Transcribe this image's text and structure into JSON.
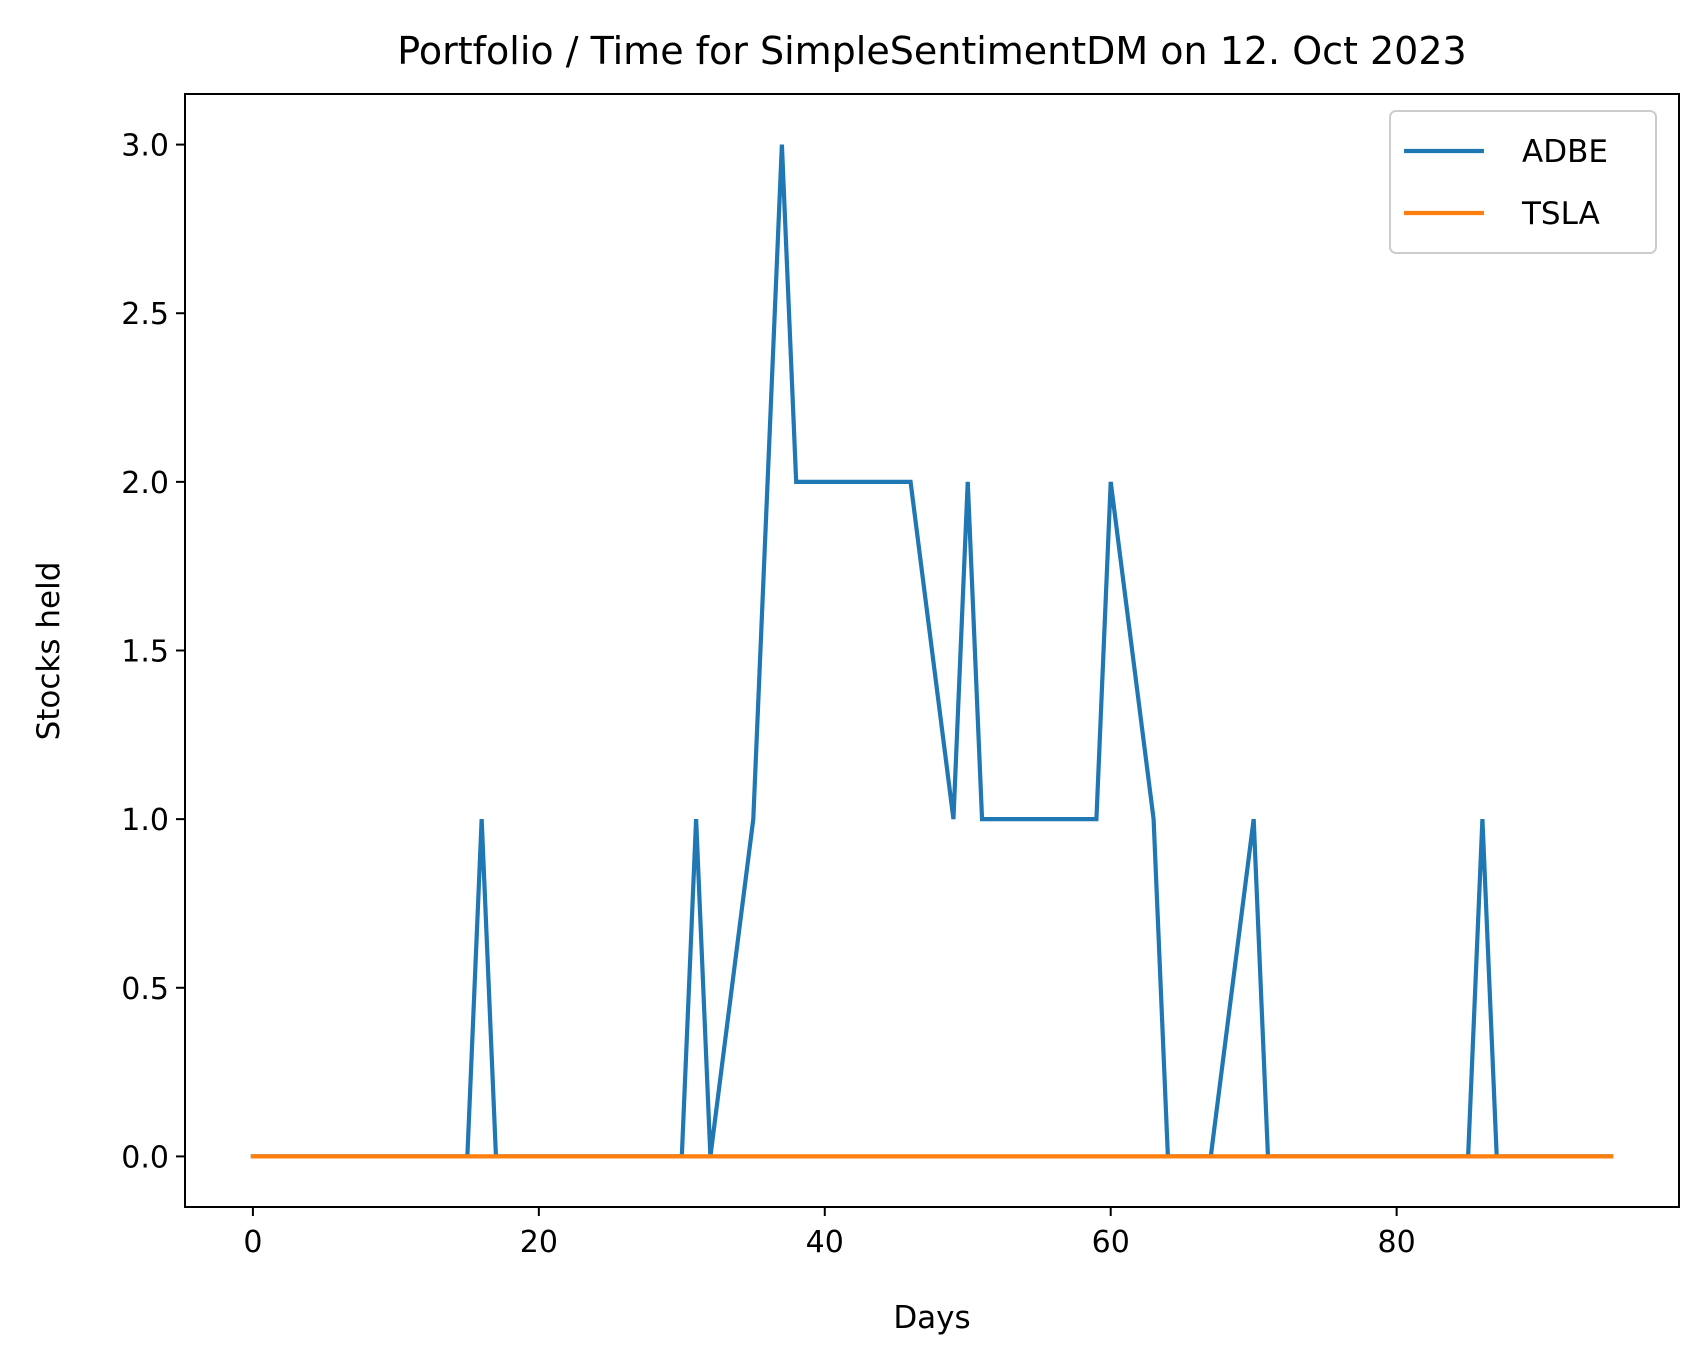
{
  "chart_data": {
    "type": "line",
    "title": "Portfolio / Time for SimpleSentimentDM on 12. Oct 2023",
    "xlabel": "Days",
    "ylabel": "Stocks held",
    "xlim": [
      -4.75,
      99.75
    ],
    "ylim": [
      -0.15,
      3.15
    ],
    "x_ticks": [
      0,
      20,
      40,
      60,
      80
    ],
    "x_tick_labels": [
      "0",
      "20",
      "40",
      "60",
      "80"
    ],
    "y_ticks": [
      0,
      0.5,
      1,
      1.5,
      2,
      2.5,
      3
    ],
    "y_tick_labels": [
      "0.0",
      "0.5",
      "1.0",
      "1.5",
      "2.0",
      "2.5",
      "3.0"
    ],
    "grid": false,
    "legend_position": "top-right",
    "series": [
      {
        "name": "ADBE",
        "color": "#1f77b4",
        "points": [
          [
            0,
            0
          ],
          [
            15,
            0
          ],
          [
            16,
            1
          ],
          [
            17,
            0
          ],
          [
            30,
            0
          ],
          [
            31,
            1
          ],
          [
            32,
            0
          ],
          [
            35,
            1
          ],
          [
            37,
            3
          ],
          [
            38,
            2
          ],
          [
            46,
            2
          ],
          [
            49,
            1
          ],
          [
            50,
            2
          ],
          [
            51,
            1
          ],
          [
            59,
            1
          ],
          [
            60,
            2
          ],
          [
            63,
            1
          ],
          [
            64,
            0
          ],
          [
            67,
            0
          ],
          [
            70,
            1
          ],
          [
            71,
            0
          ],
          [
            85,
            0
          ],
          [
            86,
            1
          ],
          [
            87,
            0
          ],
          [
            95,
            0
          ]
        ]
      },
      {
        "name": "TSLA",
        "color": "#ff7f0e",
        "points": [
          [
            0,
            0
          ],
          [
            95,
            0
          ]
        ]
      }
    ]
  }
}
